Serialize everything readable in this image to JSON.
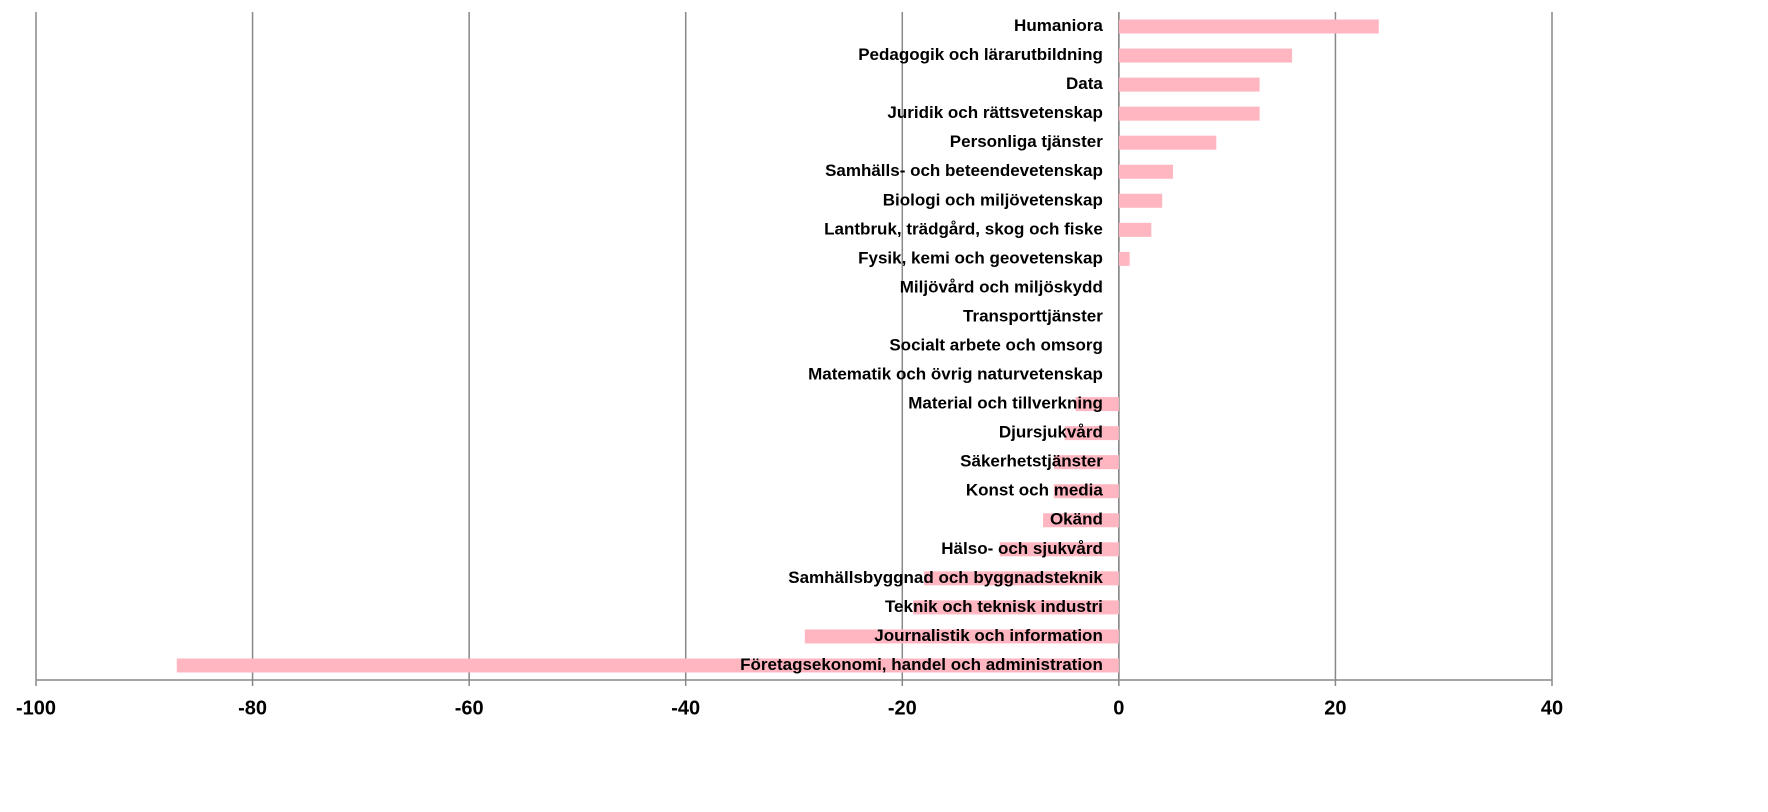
{
  "chart_data": {
    "type": "bar",
    "orientation": "horizontal",
    "categories": [
      "Humaniora",
      "Pedagogik och lärarutbildning",
      "Data",
      "Juridik och rättsvetenskap",
      "Personliga tjänster",
      "Samhälls- och beteendevetenskap",
      "Biologi och miljövetenskap",
      "Lantbruk, trädgård, skog och fiske",
      "Fysik, kemi och geovetenskap",
      "Miljövård och miljöskydd",
      "Transporttjänster",
      "Socialt arbete och omsorg",
      "Matematik och övrig naturvetenskap",
      "Material och tillverkning",
      "Djursjukvård",
      "Säkerhetstjänster",
      "Konst och media",
      "Okänd",
      "Hälso- och sjukvård",
      "Samhällsbyggnad och byggnadsteknik",
      "Teknik och teknisk industri",
      "Journalistik och information",
      "Företagsekonomi, handel och administration"
    ],
    "values": [
      24,
      16,
      13,
      13,
      9,
      5,
      4,
      3,
      1,
      0,
      0,
      0,
      0,
      -4,
      -5,
      -6,
      -6,
      -7,
      -11,
      -18,
      -19,
      -29,
      -87
    ],
    "color": "#ffb6c1",
    "xlim": [
      -100,
      40
    ],
    "xticks": [
      -100,
      -80,
      -60,
      -40,
      -20,
      0,
      20,
      40
    ],
    "grid": true
  }
}
